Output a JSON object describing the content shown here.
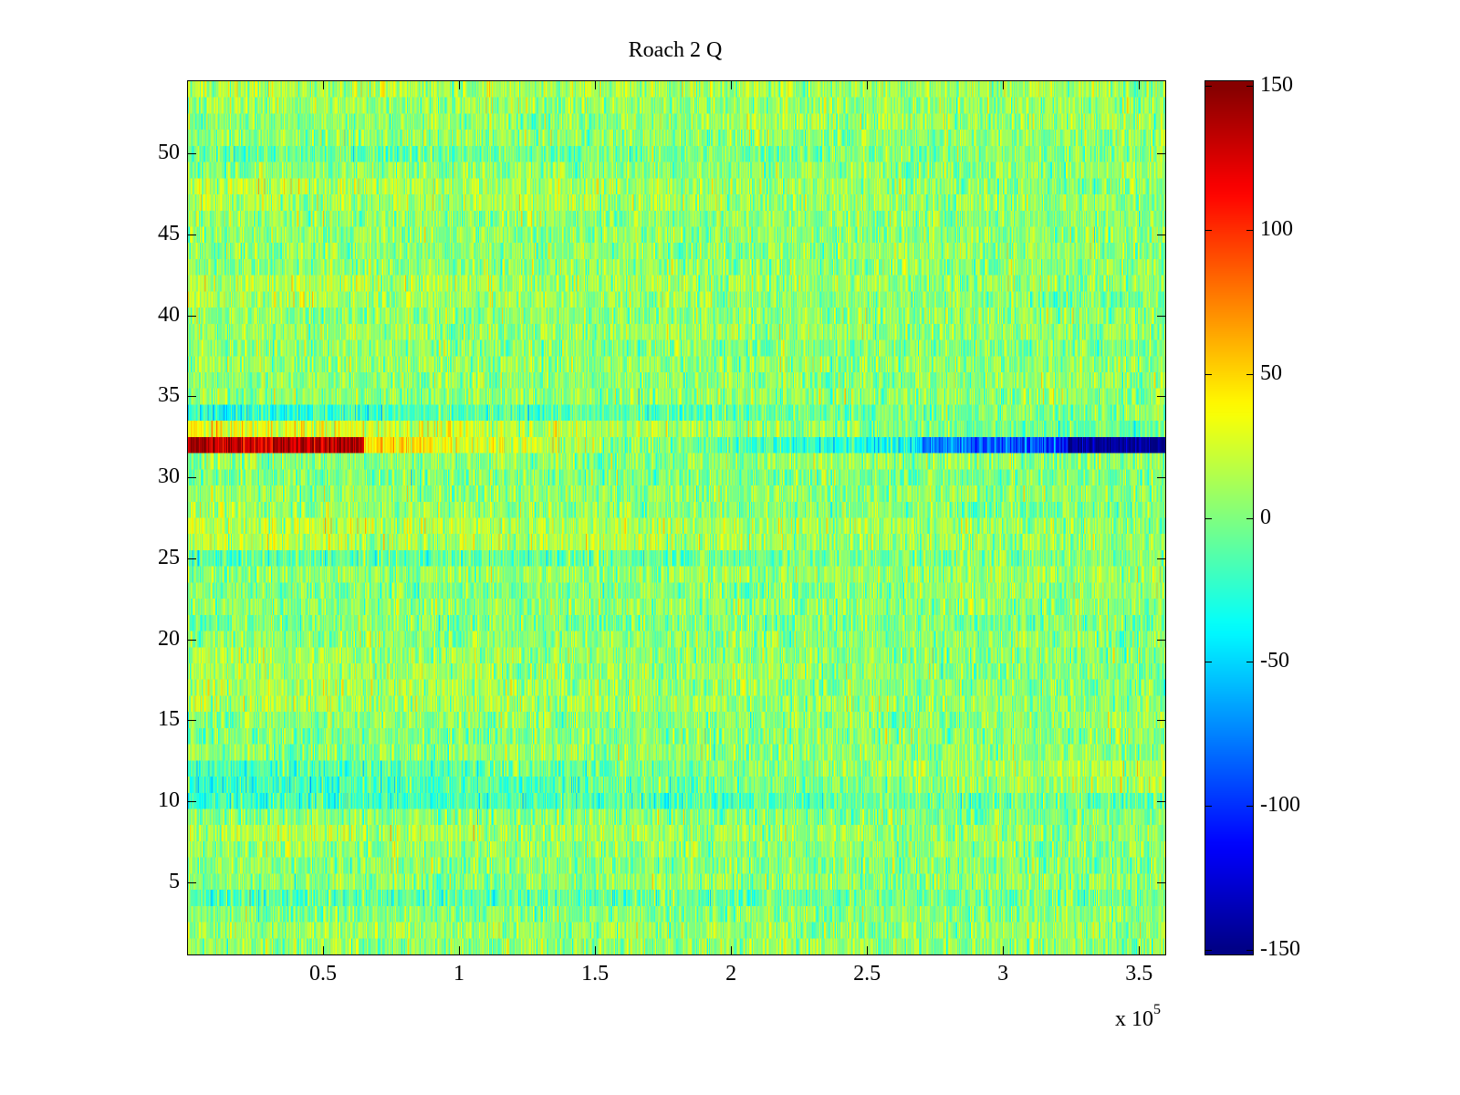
{
  "chart_data": {
    "type": "heatmap",
    "title": "Roach 2 Q",
    "xlabel": "",
    "ylabel": "",
    "x_multiplier": "x 10",
    "x_multiplier_exp": "5",
    "xlim": [
      0,
      360000
    ],
    "ylim": [
      0.5,
      54.5
    ],
    "n_rows": 54,
    "n_cols": 1000,
    "x_ticks": [
      0.5,
      1,
      1.5,
      2,
      2.5,
      3,
      3.5
    ],
    "x_tick_labels": [
      "0.5",
      "1",
      "1.5",
      "2",
      "2.5",
      "3",
      "3.5"
    ],
    "y_ticks": [
      5,
      10,
      15,
      20,
      25,
      30,
      35,
      40,
      45,
      50
    ],
    "y_tick_labels": [
      "5",
      "10",
      "15",
      "20",
      "25",
      "30",
      "35",
      "40",
      "45",
      "50"
    ],
    "colormap": "jet",
    "clim": [
      -152,
      152
    ],
    "colorbar_ticks": [
      150,
      100,
      50,
      0,
      -50,
      -100,
      -150
    ],
    "colorbar_tick_labels": [
      "150",
      "100",
      "50",
      "0",
      "-50",
      "-100",
      "-150"
    ],
    "noise_std": 18,
    "row_mean_left": [
      5,
      10,
      0,
      -15,
      5,
      5,
      8,
      15,
      5,
      -20,
      -25,
      -20,
      5,
      0,
      5,
      15,
      15,
      15,
      12,
      5,
      0,
      5,
      0,
      5,
      -15,
      20,
      22,
      10,
      5,
      0,
      5,
      140,
      35,
      -25,
      5,
      5,
      8,
      5,
      10,
      5,
      15,
      15,
      5,
      5,
      5,
      5,
      15,
      20,
      5,
      -10,
      5,
      5,
      10,
      15
    ],
    "row_mean_right": [
      5,
      5,
      5,
      0,
      5,
      0,
      5,
      5,
      0,
      -5,
      15,
      20,
      5,
      5,
      5,
      5,
      0,
      0,
      0,
      5,
      0,
      5,
      5,
      10,
      5,
      5,
      5,
      0,
      5,
      0,
      5,
      -150,
      -10,
      5,
      5,
      5,
      5,
      0,
      5,
      5,
      0,
      5,
      5,
      5,
      5,
      5,
      5,
      0,
      5,
      5,
      5,
      10,
      5,
      10
    ]
  }
}
